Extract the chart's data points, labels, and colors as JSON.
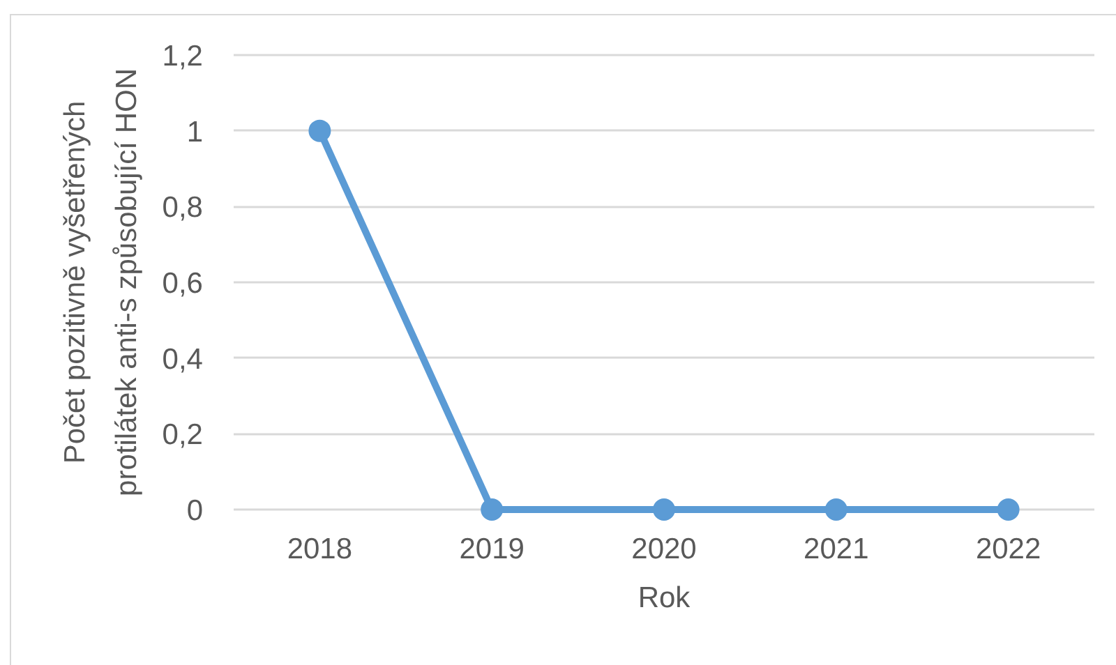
{
  "chart_data": {
    "type": "line",
    "xlabel": "Rok",
    "ylabel": "Počet pozitivně vyšetřených\nprotilátek anti-s způsobující HON",
    "categories": [
      "2018",
      "2019",
      "2020",
      "2021",
      "2022"
    ],
    "series": [
      {
        "color": "#5b9bd5",
        "values": [
          1,
          0,
          0,
          0,
          0
        ]
      }
    ],
    "ylim": [
      0,
      1.2
    ],
    "yticks": [
      0,
      {
        "value": 0.2,
        "label": "0,2"
      },
      {
        "value": 0.4,
        "label": "0,4"
      },
      {
        "value": 0.6,
        "label": "0,6"
      },
      {
        "value": 0.8,
        "label": "0,8"
      },
      1,
      {
        "value": 1.2,
        "label": "1,2"
      }
    ],
    "grid": "y",
    "marker": "circle",
    "line_style": "solid"
  }
}
